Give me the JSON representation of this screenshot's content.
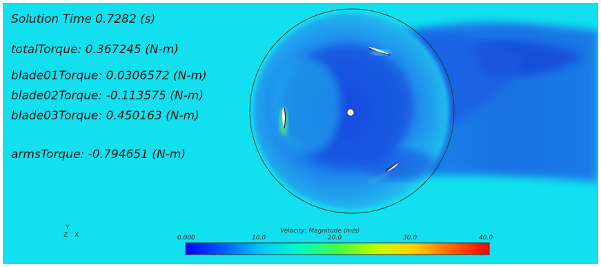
{
  "readouts": {
    "solution_time": "Solution Time 0.7282 (s)",
    "total_torque": "totalTorque: 0.367245 (N-m)",
    "blade01_torque": "blade01Torque: 0.0306572 (N-m)",
    "blade02_torque": "blade02Torque: -0.113575 (N-m)",
    "blade03_torque": "blade03Torque: 0.450163 (N-m)",
    "arms_torque": "armsTorque: -0.794651 (N-m)"
  },
  "axes_triad": {
    "y_label": "Y",
    "z_label": "Z",
    "x_label": "X"
  },
  "legend": {
    "title": "Velocity: Magnitude (m/s)",
    "ticks": [
      "0.000",
      "10.0",
      "20.0",
      "30.0",
      "40.0"
    ],
    "min": 0,
    "max": 40,
    "colors": [
      "#0000ff",
      "#0060ff",
      "#00c8ff",
      "#00ffc0",
      "#40ff40",
      "#c0ff00",
      "#ffd000",
      "#ff6000",
      "#ff0000"
    ]
  },
  "colors": {
    "background_flow": "#12e0ef",
    "wake": "#1a5ae0",
    "rotor_outline": "#1a3a3a",
    "blade": "#ffffff",
    "text": "#101010"
  }
}
